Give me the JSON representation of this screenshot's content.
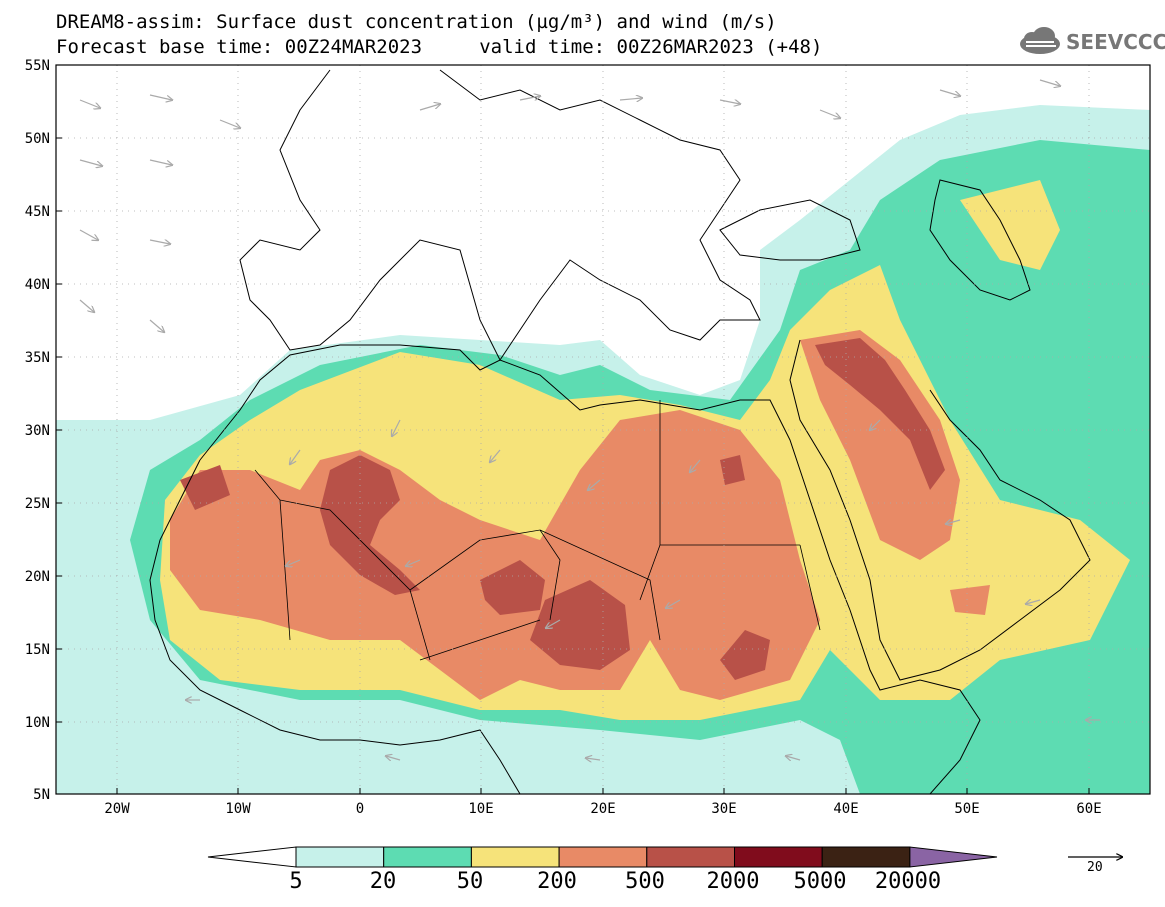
{
  "header": {
    "title_line1": "DREAM8-assim: Surface dust concentration (µg/m³) and wind (m/s)",
    "title_line2": "Forecast base time: 00Z24MAR2023     valid time: 00Z26MAR2023 (+48)"
  },
  "logo": {
    "text": "SEEVCCC",
    "icon": "cloud-logo-icon",
    "color": "#777777"
  },
  "map": {
    "lat_labels": [
      "55N",
      "50N",
      "45N",
      "40N",
      "35N",
      "30N",
      "25N",
      "20N",
      "15N",
      "10N",
      "5N"
    ],
    "lon_labels": [
      "20W",
      "10W",
      "0",
      "10E",
      "20E",
      "30E",
      "40E",
      "50E",
      "60E"
    ],
    "extent": {
      "lon": [
        -25,
        65
      ],
      "lat": [
        5,
        55
      ]
    }
  },
  "legend": {
    "thresholds": [
      "5",
      "20",
      "50",
      "200",
      "500",
      "2000",
      "5000",
      "20000"
    ],
    "colors": [
      "#ffffff",
      "#c6f1ea",
      "#5ddcb2",
      "#f6e37a",
      "#e88a66",
      "#b85148",
      "#800c1c",
      "#3b2214",
      "#8a64a4"
    ],
    "unit_vector": "20"
  }
}
